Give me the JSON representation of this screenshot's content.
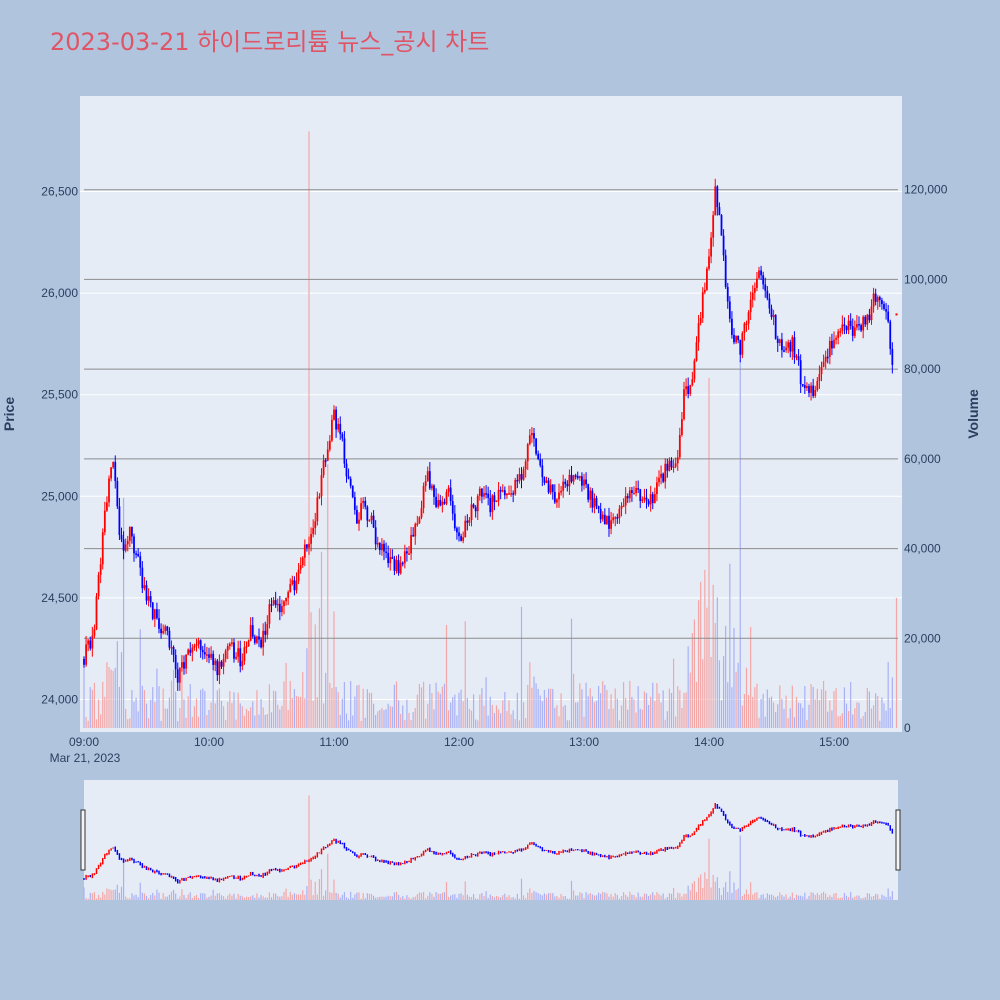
{
  "title": "2023-03-21 하이드로리튬 뉴스_공시 차트",
  "colors": {
    "background": "#b0c4de",
    "plot_bg": "#e5ecf6",
    "title": "#e05566",
    "up": "#ff0000",
    "down": "#0000ff",
    "volume_up": "#f4a6a6",
    "volume_down": "#a8b0f6",
    "axis_text": "#2a3f5f",
    "vol_grid": "#8c8c8c"
  },
  "chart_data": {
    "type": "candlestick",
    "x_start": "09:00",
    "x_end": "15:30",
    "x_ticks": [
      "09:00",
      "10:00",
      "11:00",
      "12:00",
      "13:00",
      "14:00",
      "15:00"
    ],
    "x_date_label": "Mar 21, 2023",
    "y_label": "Price",
    "y2_label": "Volume",
    "y_ticks": [
      24000,
      24500,
      25000,
      25500,
      26000,
      26500
    ],
    "y_tick_labels": [
      "24,000",
      "24,500",
      "25,000",
      "25,500",
      "26,000",
      "26,500"
    ],
    "y_range": [
      23840,
      26970
    ],
    "y2_ticks": [
      0,
      20000,
      40000,
      60000,
      80000,
      100000,
      120000
    ],
    "y2_tick_labels": [
      "0",
      "20,000",
      "40,000",
      "60,000",
      "80,000",
      "100,000",
      "120,000"
    ],
    "y2_range": [
      0,
      140000
    ],
    "price_path": [
      [
        "09:00",
        24200
      ],
      [
        "09:05",
        24350
      ],
      [
        "09:10",
        24950
      ],
      [
        "09:14",
        25150
      ],
      [
        "09:18",
        24750
      ],
      [
        "09:22",
        24850
      ],
      [
        "09:30",
        24500
      ],
      [
        "09:40",
        24300
      ],
      [
        "09:45",
        24100
      ],
      [
        "09:50",
        24250
      ],
      [
        "09:55",
        24300
      ],
      [
        "10:00",
        24200
      ],
      [
        "10:05",
        24150
      ],
      [
        "10:10",
        24250
      ],
      [
        "10:15",
        24200
      ],
      [
        "10:20",
        24350
      ],
      [
        "10:25",
        24250
      ],
      [
        "10:30",
        24500
      ],
      [
        "10:35",
        24450
      ],
      [
        "10:40",
        24550
      ],
      [
        "10:45",
        24700
      ],
      [
        "10:50",
        24850
      ],
      [
        "10:55",
        25150
      ],
      [
        "11:00",
        25400
      ],
      [
        "11:05",
        25200
      ],
      [
        "11:10",
        24900
      ],
      [
        "11:15",
        24950
      ],
      [
        "11:20",
        24800
      ],
      [
        "11:25",
        24700
      ],
      [
        "11:30",
        24650
      ],
      [
        "11:35",
        24700
      ],
      [
        "11:40",
        24900
      ],
      [
        "11:45",
        25100
      ],
      [
        "11:50",
        24950
      ],
      [
        "11:55",
        25000
      ],
      [
        "12:00",
        24800
      ],
      [
        "12:05",
        24900
      ],
      [
        "12:10",
        25000
      ],
      [
        "12:15",
        24950
      ],
      [
        "12:20",
        25050
      ],
      [
        "12:25",
        25000
      ],
      [
        "12:30",
        25100
      ],
      [
        "12:35",
        25300
      ],
      [
        "12:40",
        25100
      ],
      [
        "12:45",
        25000
      ],
      [
        "12:50",
        25050
      ],
      [
        "12:55",
        25100
      ],
      [
        "13:00",
        25050
      ],
      [
        "13:05",
        24950
      ],
      [
        "13:10",
        24850
      ],
      [
        "13:15",
        24900
      ],
      [
        "13:20",
        25000
      ],
      [
        "13:25",
        25000
      ],
      [
        "13:30",
        24950
      ],
      [
        "13:35",
        25050
      ],
      [
        "13:40",
        25150
      ],
      [
        "13:45",
        25200
      ],
      [
        "13:48",
        25500
      ],
      [
        "13:52",
        25550
      ],
      [
        "13:56",
        25900
      ],
      [
        "14:00",
        26200
      ],
      [
        "14:03",
        26500
      ],
      [
        "14:06",
        26300
      ],
      [
        "14:10",
        25850
      ],
      [
        "14:15",
        25700
      ],
      [
        "14:20",
        26000
      ],
      [
        "14:25",
        26100
      ],
      [
        "14:30",
        25900
      ],
      [
        "14:35",
        25700
      ],
      [
        "14:40",
        25750
      ],
      [
        "14:45",
        25550
      ],
      [
        "14:50",
        25500
      ],
      [
        "14:55",
        25700
      ],
      [
        "15:00",
        25750
      ],
      [
        "15:05",
        25850
      ],
      [
        "15:10",
        25800
      ],
      [
        "15:15",
        25850
      ],
      [
        "15:20",
        26000
      ],
      [
        "15:25",
        25900
      ],
      [
        "15:28",
        25650
      ]
    ],
    "seed": 7
  }
}
